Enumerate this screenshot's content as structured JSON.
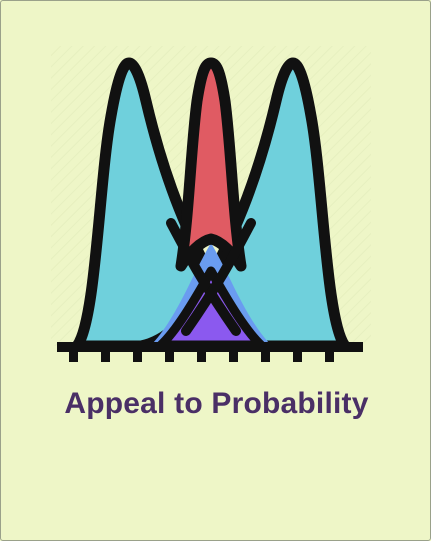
{
  "title": "Appeal to Probability",
  "colors": {
    "background": "#eef6c7",
    "title": "#4a2f66",
    "side_curves": "#6fd0dc",
    "middle_curve": "#e05b63",
    "overlap_blue": "#6a9cf0",
    "overlap_purple": "#8b59ef",
    "outline": "#111111"
  },
  "illustration": {
    "icon": "three-bell-curves-icon",
    "baseline_ticks": 9
  }
}
